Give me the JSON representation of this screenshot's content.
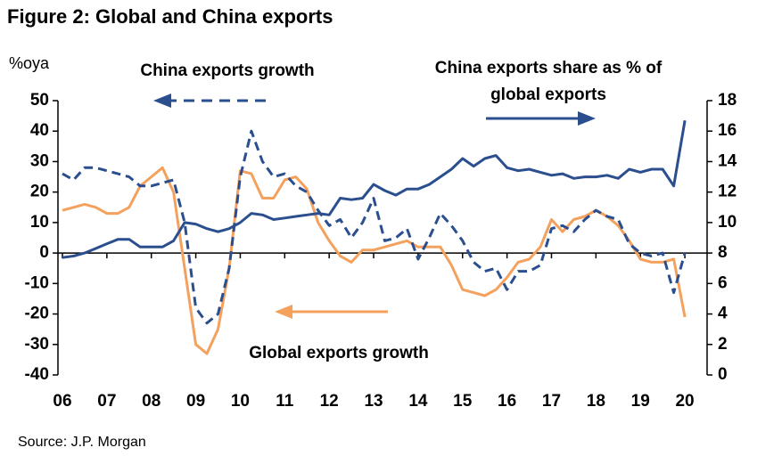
{
  "chart_data": {
    "type": "line",
    "title": "Figure 2: Global and China exports",
    "ylabel": "%oya",
    "source": "Source: J.P. Morgan",
    "x": [
      2006,
      2006.25,
      2006.5,
      2006.75,
      2007,
      2007.25,
      2007.5,
      2007.75,
      2008,
      2008.25,
      2008.5,
      2008.75,
      2009,
      2009.25,
      2009.5,
      2009.75,
      2010,
      2010.25,
      2010.5,
      2010.75,
      2011,
      2011.25,
      2011.5,
      2011.75,
      2012,
      2012.25,
      2012.5,
      2012.75,
      2013,
      2013.25,
      2013.5,
      2013.75,
      2014,
      2014.25,
      2014.5,
      2014.75,
      2015,
      2015.25,
      2015.5,
      2015.75,
      2016,
      2016.25,
      2016.5,
      2016.75,
      2017,
      2017.25,
      2017.5,
      2017.75,
      2018,
      2018.25,
      2018.5,
      2018.75,
      2019,
      2019.25,
      2019.5,
      2019.75,
      2020
    ],
    "xlim": [
      2005.9,
      2020.5
    ],
    "xticks": [
      {
        "value": 2006,
        "label": "06"
      },
      {
        "value": 2007,
        "label": "07"
      },
      {
        "value": 2008,
        "label": "08"
      },
      {
        "value": 2009,
        "label": "09"
      },
      {
        "value": 2010,
        "label": "10"
      },
      {
        "value": 2011,
        "label": "11"
      },
      {
        "value": 2012,
        "label": "12"
      },
      {
        "value": 2013,
        "label": "13"
      },
      {
        "value": 2014,
        "label": "14"
      },
      {
        "value": 2015,
        "label": "15"
      },
      {
        "value": 2016,
        "label": "16"
      },
      {
        "value": 2017,
        "label": "17"
      },
      {
        "value": 2018,
        "label": "18"
      },
      {
        "value": 2019,
        "label": "19"
      },
      {
        "value": 2020,
        "label": "20"
      }
    ],
    "ylim": [
      -40,
      50
    ],
    "yticks": [
      -40,
      -30,
      -20,
      -10,
      0,
      10,
      20,
      30,
      40,
      50
    ],
    "y2lim": [
      0,
      18
    ],
    "y2ticks": [
      0,
      2,
      4,
      6,
      8,
      10,
      12,
      14,
      16,
      18
    ],
    "series": [
      {
        "name": "China exports growth",
        "color": "#2b4f8e",
        "style": "dashed",
        "values": [
          26,
          24,
          28,
          28,
          27,
          26,
          25,
          22,
          22,
          23,
          24,
          10,
          -18,
          -23,
          -20,
          -5,
          25,
          40,
          30,
          25,
          26,
          22,
          20,
          14,
          9,
          11,
          5,
          10,
          18,
          4,
          5,
          8,
          -2,
          5,
          13,
          9,
          4,
          -3,
          -6,
          -5,
          -12,
          -6,
          -6,
          -4,
          8,
          9,
          7,
          11,
          14,
          12,
          11,
          3,
          0,
          -1,
          0,
          -13,
          0
        ]
      },
      {
        "name": "Global exports growth",
        "color": "#f4a15d",
        "style": "solid",
        "values": [
          14,
          15,
          16,
          15,
          13,
          13,
          15,
          22,
          25,
          28,
          20,
          -5,
          -30,
          -33,
          -25,
          -5,
          27,
          26,
          18,
          18,
          24,
          25,
          21,
          10,
          4,
          -1,
          -3,
          1,
          1,
          2,
          3,
          4,
          2,
          2,
          2,
          -4,
          -12,
          -13,
          -14,
          -12,
          -8,
          -3,
          -2,
          2,
          11,
          7,
          11,
          12,
          14,
          12,
          9,
          4,
          -2,
          -3,
          -3,
          -2,
          -21
        ]
      },
      {
        "name": "China exports share as % of global exports",
        "color": "#2b4f8e",
        "style": "solid",
        "axis": "y2",
        "values": [
          7.7,
          7.8,
          8.0,
          8.3,
          8.6,
          8.9,
          8.9,
          8.4,
          8.4,
          8.4,
          8.8,
          10.0,
          9.9,
          9.6,
          9.4,
          9.6,
          10.0,
          10.6,
          10.5,
          10.2,
          10.3,
          10.4,
          10.5,
          10.6,
          10.5,
          11.6,
          11.5,
          11.6,
          12.5,
          12.1,
          11.8,
          12.2,
          12.2,
          12.5,
          13.0,
          13.5,
          14.2,
          13.7,
          14.2,
          14.4,
          13.6,
          13.4,
          13.5,
          13.3,
          13.1,
          13.2,
          12.9,
          13.0,
          13.0,
          13.1,
          12.9,
          13.5,
          13.3,
          13.5,
          13.5,
          12.4,
          16.7
        ]
      }
    ]
  }
}
